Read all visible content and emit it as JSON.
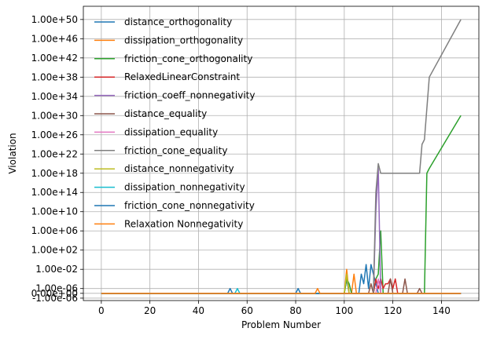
{
  "chart_data": {
    "type": "line",
    "title": "",
    "xlabel": "Problem Number",
    "ylabel": "Violation",
    "x_scale": "linear",
    "y_scale": "symlog",
    "xlim": [
      -7.4,
      155.4
    ],
    "x_ticks": [
      0,
      20,
      40,
      60,
      80,
      100,
      120,
      140
    ],
    "x_tick_labels": [
      "0",
      "20",
      "40",
      "60",
      "80",
      "100",
      "120",
      "140"
    ],
    "y_ticks": [
      -1e-06,
      0,
      1e-06,
      0.01,
      100.0,
      1000000.0,
      10000000000.0,
      100000000000000.0,
      1e+18,
      1e+22,
      1e+26,
      1e+30,
      1e+34,
      1e+38,
      1e+42,
      1e+46,
      1e+50
    ],
    "y_tick_labels": [
      "-1.00e-06",
      "0.00e+00",
      "1.00e-06",
      "1.00e-02",
      "1.00e+02",
      "1.00e+06",
      "1.00e+10",
      "1.00e+14",
      "1.00e+18",
      "1.00e+22",
      "1.00e+26",
      "1.00e+30",
      "1.00e+34",
      "1.00e+38",
      "1.00e+42",
      "1.00e+46",
      "1.00e+50"
    ],
    "grid": true,
    "legend_position": "top-left",
    "series": [
      {
        "name": "distance_orthogonality",
        "color": "#1f77b4",
        "points": [
          [
            0,
            0
          ],
          [
            52,
            0
          ],
          [
            53,
            1e-06
          ],
          [
            54,
            0
          ],
          [
            100,
            0
          ],
          [
            101,
            0.0001
          ],
          [
            102,
            0
          ],
          [
            106,
            0
          ],
          [
            107,
            0.001
          ],
          [
            108,
            1e-05
          ],
          [
            109,
            0.1
          ],
          [
            110,
            1e-06
          ],
          [
            111,
            0.1
          ],
          [
            112,
            0.001
          ],
          [
            113,
            1e-05
          ],
          [
            114,
            0
          ],
          [
            148,
            0
          ]
        ]
      },
      {
        "name": "dissipation_orthogonality",
        "color": "#ff7f0e",
        "points": [
          [
            0,
            0
          ],
          [
            100,
            0
          ],
          [
            101,
            0.01
          ],
          [
            102,
            0
          ],
          [
            103,
            0
          ],
          [
            104,
            0.001
          ],
          [
            105,
            0
          ],
          [
            148,
            0
          ]
        ]
      },
      {
        "name": "friction_cone_orthogonality",
        "color": "#2ca02c",
        "points": [
          [
            0,
            0
          ],
          [
            100,
            0
          ],
          [
            101,
            0.0001
          ],
          [
            102,
            1e-05
          ],
          [
            103,
            0
          ],
          [
            112,
            0
          ],
          [
            113,
            0.0001
          ],
          [
            114,
            0.001
          ],
          [
            115,
            1000000.0
          ],
          [
            116,
            0
          ],
          [
            133,
            0
          ],
          [
            134,
            1e+18
          ],
          [
            135,
            1e+19
          ],
          [
            148,
            1e+30
          ]
        ]
      },
      {
        "name": "RelaxedLinearConstraint",
        "color": "#d62728",
        "points": [
          [
            0,
            0
          ],
          [
            112,
            0
          ],
          [
            113,
            0.0001
          ],
          [
            114,
            1e-06
          ],
          [
            115,
            0.0001
          ],
          [
            116,
            1e-06
          ],
          [
            117,
            1e-05
          ],
          [
            118,
            1e-05
          ],
          [
            119,
            0.0001
          ],
          [
            120,
            1e-06
          ],
          [
            121,
            0.0001
          ],
          [
            122,
            0
          ],
          [
            148,
            0
          ]
        ]
      },
      {
        "name": "friction_coeff_nonnegativity",
        "color": "#9467bd",
        "points": [
          [
            0,
            0
          ],
          [
            112,
            0
          ],
          [
            113,
            10000000000.0
          ],
          [
            114,
            1e+19
          ],
          [
            115,
            0
          ],
          [
            148,
            0
          ]
        ]
      },
      {
        "name": "distance_equality",
        "color": "#8c564b",
        "points": [
          [
            0,
            0
          ],
          [
            110,
            0
          ],
          [
            111,
            1e-05
          ],
          [
            112,
            0
          ],
          [
            118,
            0
          ],
          [
            119,
            0.0001
          ],
          [
            120,
            0
          ],
          [
            124,
            0
          ],
          [
            125,
            0.0001
          ],
          [
            126,
            0
          ],
          [
            130,
            0
          ],
          [
            131,
            1e-06
          ],
          [
            132,
            0
          ],
          [
            148,
            0
          ]
        ]
      },
      {
        "name": "dissipation_equality",
        "color": "#e377c2",
        "points": [
          [
            0,
            0
          ],
          [
            113,
            0
          ],
          [
            114,
            0.0001
          ],
          [
            115,
            0
          ],
          [
            148,
            0
          ]
        ]
      },
      {
        "name": "friction_cone_equality",
        "color": "#7f7f7f",
        "points": [
          [
            0,
            0
          ],
          [
            112,
            0
          ],
          [
            113,
            100000000000000.0
          ],
          [
            114,
            1e+20
          ],
          [
            115,
            1e+18
          ],
          [
            116,
            1e+18
          ],
          [
            131,
            1e+18
          ],
          [
            132,
            1e+24
          ],
          [
            133,
            1e+25
          ],
          [
            135,
            1e+38
          ],
          [
            148,
            1e+50
          ]
        ]
      },
      {
        "name": "distance_nonnegativity",
        "color": "#bcbd22",
        "points": [
          [
            0,
            0
          ],
          [
            100,
            0
          ],
          [
            101,
            0.001
          ],
          [
            102,
            0
          ],
          [
            148,
            0
          ]
        ]
      },
      {
        "name": "dissipation_nonnegativity",
        "color": "#17becf",
        "points": [
          [
            0,
            0
          ],
          [
            55,
            0
          ],
          [
            56,
            1e-06
          ],
          [
            57,
            0
          ],
          [
            148,
            0
          ]
        ]
      },
      {
        "name": "friction_cone_nonnegativity",
        "color": "#1f77b4",
        "points": [
          [
            0,
            0
          ],
          [
            80,
            0
          ],
          [
            81,
            1e-06
          ],
          [
            82,
            0
          ],
          [
            148,
            0
          ]
        ]
      },
      {
        "name": "Relaxation Nonnegativity",
        "color": "#ff7f0e",
        "points": [
          [
            0,
            0
          ],
          [
            88,
            0
          ],
          [
            89,
            1e-06
          ],
          [
            90,
            0
          ],
          [
            148,
            0
          ]
        ]
      }
    ]
  }
}
